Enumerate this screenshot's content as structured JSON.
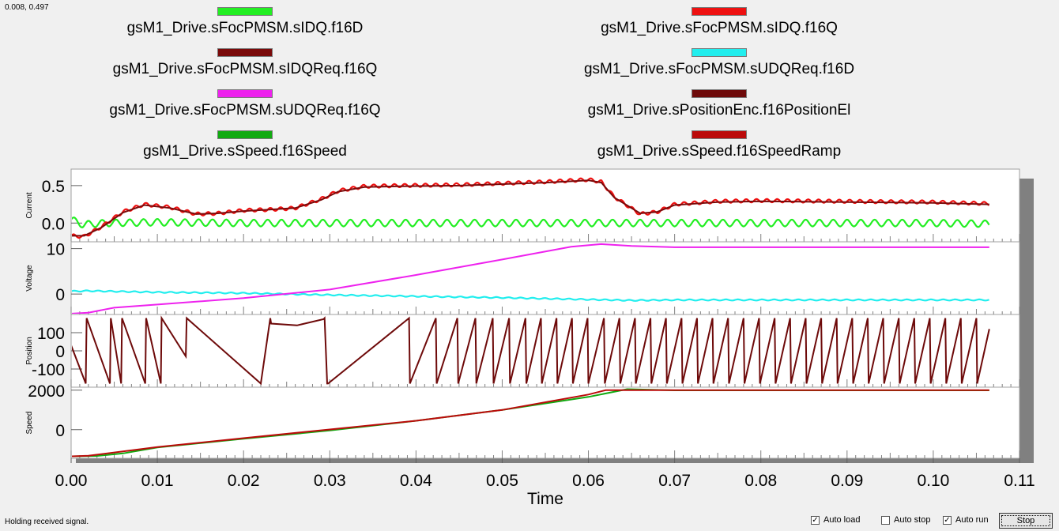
{
  "cursor_readout": "0.008, 0.497",
  "status": {
    "text": "Holding received signal.",
    "auto_load_label": "Auto load",
    "auto_load_checked": true,
    "auto_stop_label": "Auto stop",
    "auto_stop_checked": false,
    "auto_run_label": "Auto run",
    "auto_run_checked": true,
    "stop_label": "Stop"
  },
  "legend": [
    {
      "label": "gsM1_Drive.sFocPMSM.sIDQ.f16D",
      "color": "#22ee22"
    },
    {
      "label": "gsM1_Drive.sFocPMSM.sIDQ.f16Q",
      "color": "#ee1111"
    },
    {
      "label": "gsM1_Drive.sFocPMSM.sIDQReq.f16Q",
      "color": "#7a0a0a"
    },
    {
      "label": "gsM1_Drive.sFocPMSM.sUDQReq.f16D",
      "color": "#22eeee"
    },
    {
      "label": "gsM1_Drive.sFocPMSM.sUDQReq.f16Q",
      "color": "#ee22ee"
    },
    {
      "label": "gsM1_Drive.sPositionEnc.f16PositionEl",
      "color": "#6e0a0a"
    },
    {
      "label": "gsM1_Drive.sSpeed.f16Speed",
      "color": "#11aa11"
    },
    {
      "label": "gsM1_Drive.sSpeed.f16SpeedRamp",
      "color": "#bb0a0a"
    }
  ],
  "chart_data": {
    "type": "line",
    "xlabel": "Time",
    "xlim": [
      0,
      0.11
    ],
    "x_ticks": [
      "0.00",
      "0.01",
      "0.02",
      "0.03",
      "0.04",
      "0.05",
      "0.06",
      "0.07",
      "0.08",
      "0.09",
      "0.10",
      "0.11"
    ],
    "x_end": 0.1065,
    "subplots": [
      {
        "ylabel": "Current",
        "ylim": [
          -0.25,
          0.72
        ],
        "y_ticks": [
          "0.5",
          "0.0"
        ],
        "y_tick_values": [
          0.5,
          0.0
        ],
        "series": [
          {
            "name": "gsM1_Drive.sFocPMSM.sIDQ.f16D",
            "color": "#22ee22",
            "ripple": 0.045,
            "ripple_period": 0.0016,
            "x": [
              0,
              0.0007,
              0.0014,
              0.004,
              0.01,
              0.02,
              0.03,
              0.04,
              0.05,
              0.06,
              0.062,
              0.07,
              0.08,
              0.09,
              0.1,
              0.1065
            ],
            "y": [
              0.05,
              0.01,
              -0.02,
              0.0,
              0.01,
              0.0,
              0.0,
              0.0,
              0.0,
              0.0,
              0.0,
              0.0,
              0.0,
              0.0,
              0.0,
              -0.01
            ]
          },
          {
            "name": "gsM1_Drive.sFocPMSM.sIDQ.f16Q",
            "color": "#ee1111",
            "ripple": 0.022,
            "ripple_period": 0.0012,
            "x": [
              0,
              0.0015,
              0.0035,
              0.006,
              0.0085,
              0.0115,
              0.0145,
              0.017,
              0.02,
              0.023,
              0.026,
              0.029,
              0.031,
              0.034,
              0.038,
              0.045,
              0.05,
              0.055,
              0.06,
              0.0615,
              0.063,
              0.066,
              0.068,
              0.07,
              0.075,
              0.08,
              0.09,
              0.1,
              0.1065
            ],
            "y": [
              -0.17,
              -0.18,
              -0.05,
              0.15,
              0.25,
              0.21,
              0.12,
              0.13,
              0.17,
              0.18,
              0.2,
              0.32,
              0.43,
              0.49,
              0.5,
              0.51,
              0.53,
              0.55,
              0.58,
              0.55,
              0.35,
              0.12,
              0.15,
              0.25,
              0.29,
              0.3,
              0.29,
              0.28,
              0.26
            ]
          },
          {
            "name": "gsM1_Drive.sFocPMSM.sIDQReq.f16Q",
            "color": "#7a0a0a",
            "ripple": 0.0,
            "ripple_period": 0.001,
            "x": [
              0,
              0.0015,
              0.0035,
              0.006,
              0.0085,
              0.0115,
              0.0145,
              0.017,
              0.02,
              0.023,
              0.026,
              0.029,
              0.031,
              0.034,
              0.038,
              0.045,
              0.05,
              0.055,
              0.06,
              0.0615,
              0.063,
              0.066,
              0.068,
              0.07,
              0.075,
              0.08,
              0.09,
              0.1,
              0.1065
            ],
            "y": [
              -0.17,
              -0.17,
              -0.06,
              0.14,
              0.24,
              0.2,
              0.12,
              0.13,
              0.16,
              0.18,
              0.2,
              0.31,
              0.42,
              0.48,
              0.49,
              0.5,
              0.52,
              0.54,
              0.57,
              0.54,
              0.34,
              0.13,
              0.15,
              0.24,
              0.28,
              0.29,
              0.28,
              0.27,
              0.25
            ]
          }
        ]
      },
      {
        "ylabel": "Voltage",
        "ylim": [
          -4.5,
          11.5
        ],
        "y_ticks": [
          "10",
          "0"
        ],
        "y_tick_values": [
          10,
          0
        ],
        "series": [
          {
            "name": "gsM1_Drive.sFocPMSM.sUDQReq.f16D",
            "color": "#22eeee",
            "ripple": 0.12,
            "ripple_period": 0.0014,
            "x": [
              0,
              0.002,
              0.01,
              0.02,
              0.025,
              0.03,
              0.04,
              0.05,
              0.06,
              0.065,
              0.07,
              0.08,
              0.09,
              0.1,
              0.1065
            ],
            "y": [
              0.6,
              0.7,
              0.4,
              0.2,
              0.0,
              -0.2,
              -0.5,
              -0.8,
              -1.2,
              -1.4,
              -1.3,
              -1.3,
              -1.3,
              -1.3,
              -1.3
            ]
          },
          {
            "name": "gsM1_Drive.sFocPMSM.sUDQReq.f16Q",
            "color": "#ee22ee",
            "ripple": 0.0,
            "ripple_period": 0.001,
            "x": [
              0,
              0.002,
              0.005,
              0.01,
              0.02,
              0.03,
              0.04,
              0.05,
              0.058,
              0.0615,
              0.065,
              0.07,
              0.08,
              0.09,
              0.1,
              0.1065
            ],
            "y": [
              -4.3,
              -4.1,
              -3.0,
              -2.3,
              -0.9,
              1.0,
              4.2,
              7.6,
              10.4,
              11.0,
              10.6,
              10.3,
              10.3,
              10.3,
              10.3,
              10.3
            ]
          }
        ]
      },
      {
        "ylabel": "Position",
        "ylim": [
          -200,
          200
        ],
        "y_ticks": [
          "100",
          "0",
          "-100"
        ],
        "y_tick_values": [
          100,
          0,
          -100
        ],
        "series": [
          {
            "name": "gsM1_Drive.sPositionEnc.f16PositionEl",
            "color": "#6e0a0a",
            "ripple": 0.0,
            "ripple_period": 0.001,
            "x": [
              0,
              0.0017,
              0.0018,
              0.0045,
              0.0046,
              0.0058,
              0.0059,
              0.0086,
              0.0087,
              0.0104,
              0.0105,
              0.0133,
              0.0134,
              0.022,
              0.0231,
              0.0232,
              0.0262,
              0.0293,
              0.0294,
              0.0297,
              0.0298,
              0.0392,
              0.0393,
              0.0423,
              0.0424,
              0.0448,
              0.0449,
              0.0469,
              0.047,
              0.0489,
              0.049,
              0.0508,
              0.0509,
              0.0527,
              0.0528,
              0.0545,
              0.0546,
              0.0563,
              0.0564,
              0.0581,
              0.0582,
              0.0599,
              0.06,
              0.0618,
              0.0619,
              0.0636,
              0.0637,
              0.0654,
              0.0655,
              0.0672,
              0.0673,
              0.069,
              0.0691,
              0.0708,
              0.0709,
              0.0726,
              0.0727,
              0.0744,
              0.0745,
              0.0762,
              0.0763,
              0.078,
              0.0781,
              0.0798,
              0.0799,
              0.0816,
              0.0817,
              0.0834,
              0.0835,
              0.0852,
              0.0853,
              0.087,
              0.0871,
              0.0888,
              0.0889,
              0.0906,
              0.0907,
              0.0924,
              0.0925,
              0.0942,
              0.0943,
              0.096,
              0.0961,
              0.0978,
              0.0979,
              0.0996,
              0.0997,
              0.1014,
              0.1015,
              0.1032,
              0.1033,
              0.105,
              0.1051,
              0.1065
            ],
            "y": [
              30,
              -180,
              180,
              -180,
              180,
              -180,
              180,
              -180,
              180,
              -180,
              180,
              -30,
              180,
              -180,
              180,
              150,
              140,
              175,
              180,
              -180,
              -180,
              180,
              -180,
              180,
              -180,
              180,
              -180,
              180,
              -180,
              180,
              -180,
              180,
              -180,
              180,
              -180,
              180,
              -180,
              180,
              -180,
              180,
              -180,
              180,
              -180,
              180,
              -180,
              180,
              -180,
              180,
              -180,
              180,
              -180,
              180,
              -180,
              180,
              -180,
              180,
              -180,
              180,
              -180,
              180,
              -180,
              180,
              -180,
              180,
              -180,
              180,
              -180,
              180,
              -180,
              180,
              -180,
              180,
              -180,
              180,
              -180,
              180,
              -180,
              180,
              -180,
              180,
              -180,
              180,
              -180,
              180,
              -180,
              180,
              -180,
              180,
              -180,
              180,
              -180,
              180,
              -180,
              120
            ]
          }
        ]
      },
      {
        "ylabel": "Speed",
        "ylim": [
          -1450,
          2150
        ],
        "y_ticks": [
          "2000",
          "0"
        ],
        "y_tick_values": [
          2000,
          0
        ],
        "series": [
          {
            "name": "gsM1_Drive.sSpeed.f16Speed",
            "color": "#11aa11",
            "ripple": 0.0,
            "ripple_period": 0.001,
            "x": [
              0,
              0.003,
              0.006,
              0.01,
              0.02,
              0.03,
              0.04,
              0.05,
              0.06,
              0.0645,
              0.07,
              0.08,
              0.09,
              0.1,
              0.1065
            ],
            "y": [
              -1350,
              -1330,
              -1200,
              -900,
              -460,
              -40,
              450,
              1000,
              1660,
              2050,
              1990,
              1990,
              1990,
              1990,
              1990
            ]
          },
          {
            "name": "gsM1_Drive.sSpeed.f16SpeedRamp",
            "color": "#bb0a0a",
            "ripple": 0.0,
            "ripple_period": 0.001,
            "x": [
              0,
              0.002,
              0.01,
              0.02,
              0.03,
              0.04,
              0.05,
              0.06,
              0.062,
              0.07,
              0.08,
              0.09,
              0.1,
              0.1065
            ],
            "y": [
              -1350,
              -1320,
              -880,
              -430,
              10,
              450,
              1000,
              1780,
              2000,
              2000,
              2000,
              2000,
              2000,
              2000
            ]
          }
        ]
      }
    ]
  }
}
